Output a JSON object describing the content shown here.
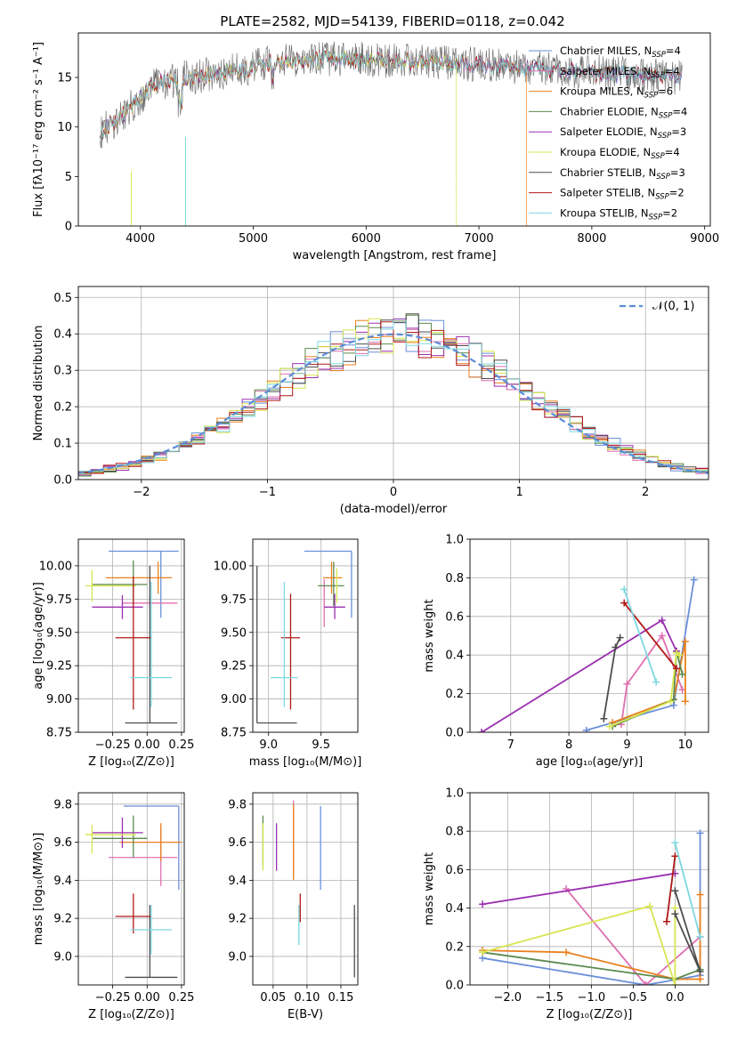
{
  "palette": [
    "#6a8fd9",
    "#e06fb0",
    "#e8801e",
    "#5b8a4f",
    "#9b30b0",
    "#d8e650",
    "#4d4d4d",
    "#b01818",
    "#7dd8e0"
  ],
  "page": {
    "title": "PLATE=2582, MJD=54139, FIBERID=0118, z=0.042"
  },
  "chart_data": [
    {
      "id": "spectrum",
      "type": "line",
      "xlabel": "wavelength [Angstrom, rest frame]",
      "ylabel": "Flux [fλ10⁻¹⁷ erg cm⁻² s⁻¹ A⁻¹]",
      "xlim": [
        3450,
        9050
      ],
      "ylim": [
        0,
        19.5
      ],
      "x_ticks": [
        "4000",
        "5000",
        "6000",
        "7000",
        "8000",
        "9000"
      ],
      "y_ticks": [
        "0",
        "5",
        "10",
        "15"
      ],
      "legend_position": "upper right",
      "series": [
        {
          "name": "Chabrier MILES, N_SSP=4",
          "color": "#6a8fd9"
        },
        {
          "name": "Salpeter MILES, N_SSP=4",
          "color": "#e06fb0"
        },
        {
          "name": "Kroupa MILES, N_SSP=6",
          "color": "#e8801e"
        },
        {
          "name": "Chabrier ELODIE, N_SSP=4",
          "color": "#5b8a4f"
        },
        {
          "name": "Salpeter ELODIE, N_SSP=3",
          "color": "#9b30b0"
        },
        {
          "name": "Kroupa ELODIE, N_SSP=4",
          "color": "#d8e650"
        },
        {
          "name": "Chabrier STELIB, N_SSP=3",
          "color": "#4d4d4d"
        },
        {
          "name": "Salpeter STELIB, N_SSP=2",
          "color": "#b01818"
        },
        {
          "name": "Kroupa STELIB, N_SSP=2",
          "color": "#7dd8e0"
        }
      ],
      "continuum": [
        [
          3650,
          9.5
        ],
        [
          3900,
          11.8
        ],
        [
          4100,
          14.2
        ],
        [
          4400,
          15.0
        ],
        [
          4800,
          15.6
        ],
        [
          5200,
          16.6
        ],
        [
          5600,
          16.9
        ],
        [
          6000,
          16.8
        ],
        [
          6500,
          16.6
        ],
        [
          7000,
          16.3
        ],
        [
          7500,
          15.9
        ],
        [
          8000,
          15.5
        ],
        [
          8500,
          15.2
        ],
        [
          8800,
          15.0
        ]
      ],
      "series_end_wavelength": [
        8800,
        8800,
        7420,
        8800,
        8800,
        6800,
        8800,
        8800,
        8800
      ]
    },
    {
      "id": "residuals",
      "type": "line",
      "xlabel": "(data-model)/error",
      "ylabel": "Normed distribution",
      "xlim": [
        -2.5,
        2.5
      ],
      "ylim": [
        0,
        0.53
      ],
      "x_ticks": [
        "−2",
        "−1",
        "0",
        "1",
        "2"
      ],
      "y_ticks": [
        "0.0",
        "0.1",
        "0.2",
        "0.3",
        "0.4",
        "0.5"
      ],
      "reference_label": "𝒩(0, 1)",
      "bin_width": 0.1
    },
    {
      "id": "age-vs-z",
      "type": "scatter",
      "xlabel": "Z [log₁₀(Z/Z⊙)]",
      "ylabel": "age  [log₁₀(age/yr)]",
      "xlim": [
        -0.5,
        0.27
      ],
      "ylim": [
        8.75,
        10.2
      ],
      "x_ticks": [
        "−0.25",
        "0.00",
        "0.25"
      ],
      "y_ticks": [
        "8.75",
        "9.00",
        "9.25",
        "9.50",
        "9.75",
        "10.00"
      ],
      "points": [
        {
          "x": 0.1,
          "y": 10.11,
          "xerr": [
            0.38,
            0.13
          ],
          "yerr": [
            0.5,
            0.0
          ]
        },
        {
          "x": 0.02,
          "y": 9.72,
          "xerr": [
            0.2,
            0.2
          ],
          "yerr": [
            0.05,
            0.05
          ]
        },
        {
          "x": 0.08,
          "y": 9.91,
          "xerr": [
            0.38,
            0.1
          ],
          "yerr": [
            0.12,
            0.12
          ]
        },
        {
          "x": -0.1,
          "y": 9.86,
          "xerr": [
            0.3,
            0.1
          ],
          "yerr": [
            0.15,
            0.18
          ]
        },
        {
          "x": -0.18,
          "y": 9.69,
          "xerr": [
            0.22,
            0.15
          ],
          "yerr": [
            0.09,
            0.09
          ]
        },
        {
          "x": -0.4,
          "y": 9.85,
          "xerr": [
            0.05,
            0.32
          ],
          "yerr": [
            0.12,
            0.12
          ]
        },
        {
          "x": 0.02,
          "y": 8.82,
          "xerr": [
            0.18,
            0.2
          ],
          "yerr": [
            0.0,
            1.18
          ]
        },
        {
          "x": -0.1,
          "y": 9.46,
          "xerr": [
            0.13,
            0.13
          ],
          "yerr": [
            0.54,
            0.46
          ]
        },
        {
          "x": 0.03,
          "y": 9.16,
          "xerr": [
            0.15,
            0.15
          ],
          "yerr": [
            0.22,
            0.72
          ]
        }
      ]
    },
    {
      "id": "age-vs-mass",
      "type": "scatter",
      "xlabel": "mass [log₁₀(M/M⊙)]",
      "ylabel": "",
      "xlim": [
        8.85,
        9.85
      ],
      "ylim": [
        8.75,
        10.2
      ],
      "x_ticks": [
        "9.0",
        "9.5"
      ],
      "y_ticks": [
        "8.75",
        "9.00",
        "9.25",
        "9.50",
        "9.75",
        "10.00"
      ],
      "points": [
        {
          "x": 9.79,
          "y": 10.11,
          "xerr": [
            0.45,
            0.0
          ],
          "yerr": [
            0.5,
            0.0
          ]
        },
        {
          "x": 9.53,
          "y": 9.72,
          "xerr": [
            0.0,
            0.0
          ],
          "yerr": [
            0.18,
            0.18
          ]
        },
        {
          "x": 9.6,
          "y": 9.91,
          "xerr": [
            0.08,
            0.1
          ],
          "yerr": [
            0.12,
            0.12
          ]
        },
        {
          "x": 9.62,
          "y": 9.85,
          "xerr": [
            0.15,
            0.1
          ],
          "yerr": [
            0.15,
            0.18
          ]
        },
        {
          "x": 9.63,
          "y": 9.69,
          "xerr": [
            0.1,
            0.1
          ],
          "yerr": [
            0.09,
            0.1
          ]
        },
        {
          "x": 9.65,
          "y": 9.86,
          "xerr": [
            0.0,
            0.0
          ],
          "yerr": [
            0.14,
            0.12
          ]
        },
        {
          "x": 8.89,
          "y": 8.82,
          "xerr": [
            0.0,
            0.38
          ],
          "yerr": [
            0.0,
            1.18
          ]
        },
        {
          "x": 9.21,
          "y": 9.46,
          "xerr": [
            0.09,
            0.09
          ],
          "yerr": [
            0.54,
            0.33
          ]
        },
        {
          "x": 9.15,
          "y": 9.16,
          "xerr": [
            0.13,
            0.13
          ],
          "yerr": [
            0.22,
            0.72
          ]
        }
      ]
    },
    {
      "id": "weights-vs-age",
      "type": "line",
      "xlabel": "age  [log₁₀(age/yr)]",
      "ylabel": "mass weight",
      "xlim": [
        6.3,
        10.4
      ],
      "ylim": [
        0,
        1
      ],
      "x_ticks": [
        "7",
        "8",
        "9",
        "10"
      ],
      "y_ticks": [
        "0.0",
        "0.2",
        "0.4",
        "0.6",
        "0.8",
        "1.0"
      ],
      "series": [
        {
          "points": [
            [
              8.3,
              0.01
            ],
            [
              9.8,
              0.14
            ],
            [
              10.15,
              0.79
            ]
          ]
        },
        {
          "points": [
            [
              8.9,
              0.04
            ],
            [
              9.0,
              0.25
            ],
            [
              9.6,
              0.5
            ],
            [
              9.95,
              0.22
            ]
          ]
        },
        {
          "points": [
            [
              8.75,
              0.05
            ],
            [
              9.8,
              0.17
            ],
            [
              10.0,
              0.47
            ],
            [
              10.0,
              0.16
            ]
          ]
        },
        {
          "points": [
            [
              8.75,
              0.03
            ],
            [
              9.8,
              0.17
            ],
            [
              9.85,
              0.42
            ],
            [
              9.95,
              0.3
            ]
          ]
        },
        {
          "points": [
            [
              6.5,
              0.0
            ],
            [
              9.6,
              0.58
            ],
            [
              9.85,
              0.42
            ]
          ]
        },
        {
          "points": [
            [
              8.7,
              0.03
            ],
            [
              9.75,
              0.16
            ],
            [
              9.85,
              0.41
            ],
            [
              9.9,
              0.4
            ]
          ]
        },
        {
          "points": [
            [
              8.6,
              0.07
            ],
            [
              8.8,
              0.44
            ],
            [
              8.88,
              0.49
            ]
          ]
        },
        {
          "points": [
            [
              8.95,
              0.67
            ],
            [
              9.85,
              0.33
            ]
          ]
        },
        {
          "points": [
            [
              8.95,
              0.74
            ],
            [
              9.5,
              0.26
            ]
          ]
        }
      ]
    },
    {
      "id": "mass-vs-z",
      "type": "scatter",
      "xlabel": "Z [log₁₀(Z/Z⊙)]",
      "ylabel": "mass [log₁₀(M/M⊙)]",
      "xlim": [
        -0.5,
        0.27
      ],
      "ylim": [
        8.85,
        9.86
      ],
      "x_ticks": [
        "−0.25",
        "0.00",
        "0.25"
      ],
      "y_ticks": [
        "9.0",
        "9.2",
        "9.4",
        "9.6",
        "9.8"
      ],
      "points": [
        {
          "x": 0.23,
          "y": 9.79,
          "xerr": [
            0.4,
            0.0
          ],
          "yerr": [
            0.44,
            0.0
          ]
        },
        {
          "x": 0.1,
          "y": 9.52,
          "xerr": [
            0.38,
            0.12
          ],
          "yerr": [
            0.15,
            0.15
          ]
        },
        {
          "x": 0.1,
          "y": 9.6,
          "xerr": [
            0.3,
            0.15
          ],
          "yerr": [
            0.1,
            0.1
          ]
        },
        {
          "x": -0.1,
          "y": 9.62,
          "xerr": [
            0.3,
            0.1
          ],
          "yerr": [
            0.1,
            0.12
          ]
        },
        {
          "x": -0.18,
          "y": 9.65,
          "xerr": [
            0.22,
            0.15
          ],
          "yerr": [
            0.08,
            0.08
          ]
        },
        {
          "x": -0.4,
          "y": 9.64,
          "xerr": [
            0.05,
            0.32
          ],
          "yerr": [
            0.1,
            0.05
          ]
        },
        {
          "x": 0.02,
          "y": 8.89,
          "xerr": [
            0.18,
            0.2
          ],
          "yerr": [
            0.0,
            0.38
          ]
        },
        {
          "x": -0.1,
          "y": 9.21,
          "xerr": [
            0.13,
            0.13
          ],
          "yerr": [
            0.09,
            0.12
          ]
        },
        {
          "x": 0.03,
          "y": 9.14,
          "xerr": [
            0.15,
            0.15
          ],
          "yerr": [
            0.13,
            0.13
          ]
        }
      ]
    },
    {
      "id": "mass-vs-ebv",
      "type": "scatter",
      "xlabel": "E(B-V)",
      "ylabel": "",
      "xlim": [
        0.02,
        0.175
      ],
      "ylim": [
        8.85,
        9.86
      ],
      "x_ticks": [
        "0.05",
        "0.10",
        "0.15"
      ],
      "y_ticks": [
        "9.0",
        "9.2",
        "9.4",
        "9.6",
        "9.8"
      ],
      "points": [
        {
          "x": 0.12,
          "y": 9.79,
          "yerr": [
            0.44,
            0.0
          ]
        },
        {
          "x": 0.08,
          "y": 9.62,
          "yerr": [
            0.2,
            0.2
          ]
        },
        {
          "x": 0.08,
          "y": 9.6,
          "yerr": [
            0.2,
            0.2
          ]
        },
        {
          "x": 0.035,
          "y": 9.62,
          "yerr": [
            0.15,
            0.12
          ]
        },
        {
          "x": 0.055,
          "y": 9.6,
          "yerr": [
            0.15,
            0.1
          ]
        },
        {
          "x": 0.035,
          "y": 9.6,
          "yerr": [
            0.15,
            0.1
          ]
        },
        {
          "x": 0.17,
          "y": 8.89,
          "yerr": [
            0.0,
            0.38
          ]
        },
        {
          "x": 0.09,
          "y": 9.21,
          "yerr": [
            0.03,
            0.12
          ]
        },
        {
          "x": 0.088,
          "y": 9.14,
          "yerr": [
            0.08,
            0.13
          ]
        }
      ]
    },
    {
      "id": "weights-vs-z",
      "type": "line",
      "xlabel": "Z [log₁₀(Z/Z⊙)]",
      "ylabel": "mass weight",
      "xlim": [
        -2.45,
        0.4
      ],
      "ylim": [
        0,
        1
      ],
      "x_ticks": [
        "−2.0",
        "−1.5",
        "−1.0",
        "−0.5",
        "0.0"
      ],
      "y_ticks": [
        "0.0",
        "0.2",
        "0.4",
        "0.6",
        "0.8",
        "1.0"
      ],
      "series": [
        {
          "points": [
            [
              -2.3,
              0.14
            ],
            [
              -0.35,
              0.0
            ],
            [
              0.3,
              0.05
            ],
            [
              0.3,
              0.79
            ]
          ]
        },
        {
          "points": [
            [
              -1.3,
              0.5
            ],
            [
              -0.35,
              0.0
            ],
            [
              0.3,
              0.25
            ]
          ]
        },
        {
          "points": [
            [
              -2.3,
              0.18
            ],
            [
              -1.3,
              0.17
            ],
            [
              0.0,
              0.03
            ],
            [
              0.3,
              0.03
            ],
            [
              0.3,
              0.47
            ]
          ]
        },
        {
          "points": [
            [
              -2.3,
              0.17
            ],
            [
              0.0,
              0.03
            ],
            [
              0.3,
              0.08
            ]
          ]
        },
        {
          "points": [
            [
              -2.3,
              0.42
            ],
            [
              0.0,
              0.58
            ]
          ]
        },
        {
          "points": [
            [
              -2.3,
              0.17
            ],
            [
              -0.3,
              0.41
            ],
            [
              0.0,
              0.0
            ],
            [
              0.0,
              0.4
            ]
          ]
        },
        {
          "points": [
            [
              0.0,
              0.49
            ],
            [
              0.3,
              0.07
            ],
            [
              0.0,
              0.37
            ]
          ]
        },
        {
          "points": [
            [
              -0.1,
              0.33
            ],
            [
              0.0,
              0.67
            ]
          ]
        },
        {
          "points": [
            [
              0.0,
              0.74
            ],
            [
              0.3,
              0.25
            ]
          ]
        }
      ]
    }
  ]
}
